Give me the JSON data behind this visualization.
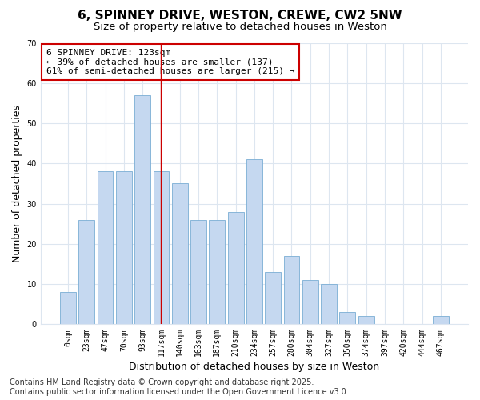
{
  "title": "6, SPINNEY DRIVE, WESTON, CREWE, CW2 5NW",
  "subtitle": "Size of property relative to detached houses in Weston",
  "xlabel": "Distribution of detached houses by size in Weston",
  "ylabel": "Number of detached properties",
  "bar_labels": [
    "0sqm",
    "23sqm",
    "47sqm",
    "70sqm",
    "93sqm",
    "117sqm",
    "140sqm",
    "163sqm",
    "187sqm",
    "210sqm",
    "234sqm",
    "257sqm",
    "280sqm",
    "304sqm",
    "327sqm",
    "350sqm",
    "374sqm",
    "397sqm",
    "420sqm",
    "444sqm",
    "467sqm"
  ],
  "bar_values": [
    8,
    26,
    38,
    38,
    57,
    38,
    35,
    26,
    26,
    28,
    41,
    13,
    17,
    11,
    10,
    3,
    2,
    0,
    0,
    0,
    2
  ],
  "bar_color": "#c5d8f0",
  "bar_edge_color": "#7aadd4",
  "vline_x": 5,
  "vline_color": "#cc0000",
  "ylim": [
    0,
    70
  ],
  "yticks": [
    0,
    10,
    20,
    30,
    40,
    50,
    60,
    70
  ],
  "annotation_text": "6 SPINNEY DRIVE: 123sqm\n← 39% of detached houses are smaller (137)\n61% of semi-detached houses are larger (215) →",
  "annotation_box_color": "#ffffff",
  "annotation_box_edge": "#cc0000",
  "footer_text": "Contains HM Land Registry data © Crown copyright and database right 2025.\nContains public sector information licensed under the Open Government Licence v3.0.",
  "background_color": "#ffffff",
  "grid_color": "#dde6f0",
  "title_fontsize": 11,
  "subtitle_fontsize": 9.5,
  "axis_label_fontsize": 9,
  "tick_fontsize": 7,
  "annotation_fontsize": 8,
  "footer_fontsize": 7
}
